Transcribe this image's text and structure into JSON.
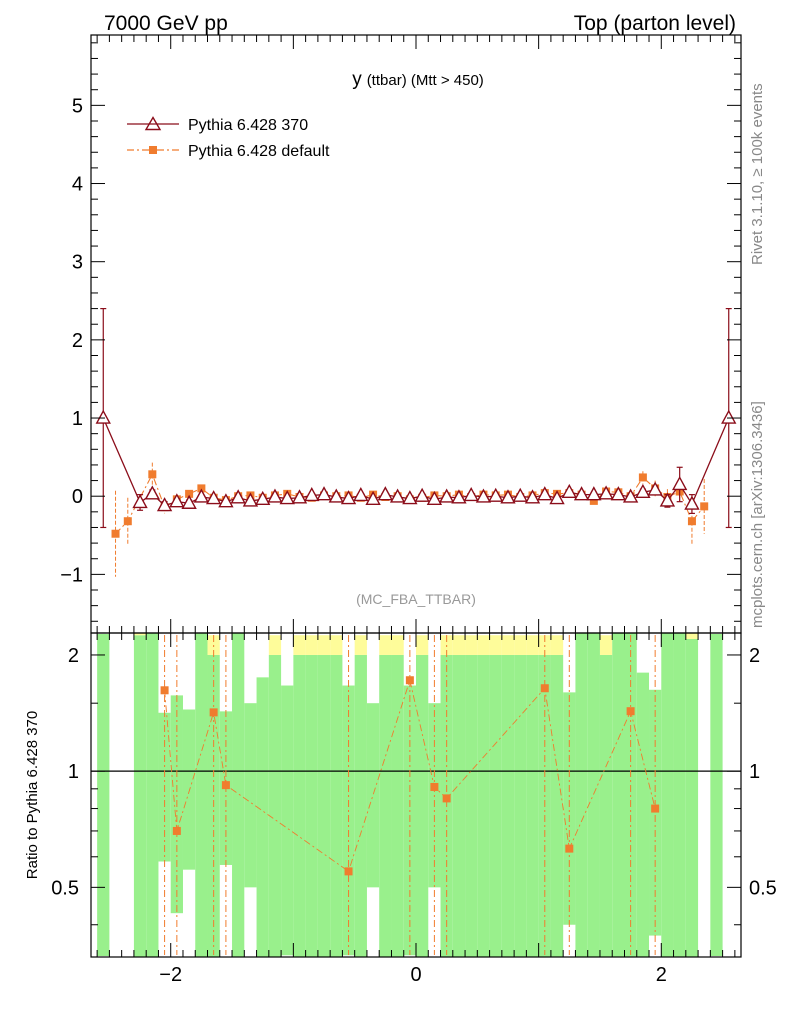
{
  "header": {
    "energy_label": "7000 GeV pp",
    "process_label": "Top (parton level)"
  },
  "side_labels": {
    "rivet": "Rivet 3.1.10, ≥ 100k events",
    "mcplots": "mcplots.cern.ch [arXiv:1306.3436]"
  },
  "plot_title": {
    "main": "y",
    "sub": "(ttbar) (Mtt > 450)"
  },
  "analysis_id": "(MC_FBA_TTBAR)",
  "ratio_ylabel": "Ratio to Pythia 6.428 370",
  "colors": {
    "ref": "#8b0d1a",
    "mc": "#f07c2e",
    "band_green": "#99f08c",
    "band_yellow": "#fefc9a",
    "line": "#000000"
  },
  "chart_data": {
    "type": "line",
    "xlim": [
      -2.65,
      2.65
    ],
    "ylim_main": [
      -1.75,
      5.9
    ],
    "ylim_ratio": [
      0.33,
      2.28
    ],
    "ratio_log_scale": true,
    "x_ticks": [
      -2,
      0,
      2
    ],
    "x_tick_labels": [
      "−2",
      "0",
      "2"
    ],
    "y_ticks_main": [
      -1,
      0,
      1,
      2,
      3,
      4,
      5
    ],
    "y_tick_labels_main": [
      "−1",
      "0",
      "1",
      "2",
      "3",
      "4",
      "5"
    ],
    "y_ticks_ratio": [
      0.5,
      1,
      2
    ],
    "y_tick_labels_ratio": [
      "0.5",
      "1",
      "2"
    ],
    "legend_position": "top-left",
    "series": [
      {
        "name": "Pythia 6.428 370",
        "marker": "open-triangle",
        "line": "solid",
        "points": [
          {
            "x": -2.55,
            "y": 1.0,
            "err": 1.4
          },
          {
            "x": -2.25,
            "y": -0.08,
            "err": 0.1
          },
          {
            "x": -2.15,
            "y": 0.03,
            "err": 0.05
          },
          {
            "x": -2.05,
            "y": -0.12,
            "err": 0.05
          },
          {
            "x": -1.95,
            "y": -0.07,
            "err": 0.04
          },
          {
            "x": -1.85,
            "y": -0.09,
            "err": 0.04
          },
          {
            "x": -1.75,
            "y": -0.01,
            "err": 0.03
          },
          {
            "x": -1.65,
            "y": -0.03,
            "err": 0.03
          },
          {
            "x": -1.55,
            "y": -0.07,
            "err": 0.03
          },
          {
            "x": -1.45,
            "y": -0.02,
            "err": 0.03
          },
          {
            "x": -1.35,
            "y": -0.06,
            "err": 0.03
          },
          {
            "x": -1.25,
            "y": -0.04,
            "err": 0.03
          },
          {
            "x": -1.15,
            "y": -0.01,
            "err": 0.02
          },
          {
            "x": -1.05,
            "y": -0.03,
            "err": 0.02
          },
          {
            "x": -0.95,
            "y": -0.02,
            "err": 0.02
          },
          {
            "x": -0.85,
            "y": 0.01,
            "err": 0.02
          },
          {
            "x": -0.75,
            "y": 0.02,
            "err": 0.02
          },
          {
            "x": -0.65,
            "y": -0.01,
            "err": 0.02
          },
          {
            "x": -0.55,
            "y": -0.03,
            "err": 0.02
          },
          {
            "x": -0.45,
            "y": 0.01,
            "err": 0.02
          },
          {
            "x": -0.35,
            "y": -0.04,
            "err": 0.02
          },
          {
            "x": -0.25,
            "y": 0.02,
            "err": 0.02
          },
          {
            "x": -0.15,
            "y": -0.01,
            "err": 0.02
          },
          {
            "x": -0.05,
            "y": -0.03,
            "err": 0.02
          },
          {
            "x": 0.05,
            "y": 0.0,
            "err": 0.02
          },
          {
            "x": 0.15,
            "y": -0.04,
            "err": 0.02
          },
          {
            "x": 0.25,
            "y": -0.01,
            "err": 0.02
          },
          {
            "x": 0.35,
            "y": -0.02,
            "err": 0.02
          },
          {
            "x": 0.45,
            "y": 0.01,
            "err": 0.02
          },
          {
            "x": 0.55,
            "y": -0.01,
            "err": 0.02
          },
          {
            "x": 0.65,
            "y": 0.0,
            "err": 0.02
          },
          {
            "x": 0.75,
            "y": -0.02,
            "err": 0.02
          },
          {
            "x": 0.85,
            "y": 0.0,
            "err": 0.02
          },
          {
            "x": 0.95,
            "y": -0.02,
            "err": 0.02
          },
          {
            "x": 1.05,
            "y": 0.02,
            "err": 0.02
          },
          {
            "x": 1.15,
            "y": -0.03,
            "err": 0.03
          },
          {
            "x": 1.25,
            "y": 0.05,
            "err": 0.03
          },
          {
            "x": 1.35,
            "y": 0.02,
            "err": 0.03
          },
          {
            "x": 1.45,
            "y": 0.02,
            "err": 0.03
          },
          {
            "x": 1.55,
            "y": 0.03,
            "err": 0.03
          },
          {
            "x": 1.65,
            "y": 0.02,
            "err": 0.03
          },
          {
            "x": 1.75,
            "y": -0.01,
            "err": 0.04
          },
          {
            "x": 1.85,
            "y": 0.05,
            "err": 0.04
          },
          {
            "x": 1.95,
            "y": 0.08,
            "err": 0.05
          },
          {
            "x": 2.05,
            "y": -0.06,
            "err": 0.08
          },
          {
            "x": 2.15,
            "y": 0.15,
            "err": 0.22
          },
          {
            "x": 2.25,
            "y": -0.1,
            "err": 0.12
          },
          {
            "x": 2.55,
            "y": 1.0,
            "err": 1.4
          }
        ]
      },
      {
        "name": "Pythia 6.428 default",
        "marker": "filled-square",
        "line": "dash-dot",
        "points": [
          {
            "x": -2.45,
            "y": -0.48,
            "err": 0.55
          },
          {
            "x": -2.35,
            "y": -0.32,
            "err": 0.3
          },
          {
            "x": -2.15,
            "y": 0.28,
            "err": 0.15
          },
          {
            "x": -2.05,
            "y": -0.14,
            "err": 0.08
          },
          {
            "x": -1.95,
            "y": -0.04,
            "err": 0.05
          },
          {
            "x": -1.85,
            "y": 0.03,
            "err": 0.04
          },
          {
            "x": -1.75,
            "y": 0.1,
            "err": 0.04
          },
          {
            "x": -1.65,
            "y": -0.02,
            "err": 0.03
          },
          {
            "x": -1.55,
            "y": -0.05,
            "err": 0.03
          },
          {
            "x": -1.45,
            "y": 0.0,
            "err": 0.03
          },
          {
            "x": -1.35,
            "y": 0.01,
            "err": 0.03
          },
          {
            "x": -1.25,
            "y": -0.02,
            "err": 0.03
          },
          {
            "x": -1.15,
            "y": 0.01,
            "err": 0.02
          },
          {
            "x": -1.05,
            "y": 0.03,
            "err": 0.02
          },
          {
            "x": -0.95,
            "y": -0.01,
            "err": 0.02
          },
          {
            "x": -0.85,
            "y": -0.02,
            "err": 0.02
          },
          {
            "x": -0.75,
            "y": 0.01,
            "err": 0.02
          },
          {
            "x": -0.65,
            "y": 0.0,
            "err": 0.02
          },
          {
            "x": -0.55,
            "y": 0.01,
            "err": 0.02
          },
          {
            "x": -0.45,
            "y": -0.02,
            "err": 0.02
          },
          {
            "x": -0.35,
            "y": 0.02,
            "err": 0.02
          },
          {
            "x": -0.25,
            "y": -0.01,
            "err": 0.02
          },
          {
            "x": -0.15,
            "y": 0.0,
            "err": 0.02
          },
          {
            "x": -0.05,
            "y": -0.04,
            "err": 0.02
          },
          {
            "x": 0.05,
            "y": -0.02,
            "err": 0.02
          },
          {
            "x": 0.15,
            "y": 0.01,
            "err": 0.02
          },
          {
            "x": 0.25,
            "y": 0.0,
            "err": 0.02
          },
          {
            "x": 0.35,
            "y": 0.02,
            "err": 0.02
          },
          {
            "x": 0.45,
            "y": -0.01,
            "err": 0.02
          },
          {
            "x": 0.55,
            "y": 0.02,
            "err": 0.02
          },
          {
            "x": 0.65,
            "y": 0.01,
            "err": 0.02
          },
          {
            "x": 0.75,
            "y": 0.02,
            "err": 0.02
          },
          {
            "x": 0.85,
            "y": -0.01,
            "err": 0.02
          },
          {
            "x": 0.95,
            "y": 0.01,
            "err": 0.02
          },
          {
            "x": 1.05,
            "y": 0.04,
            "err": 0.03
          },
          {
            "x": 1.15,
            "y": 0.03,
            "err": 0.03
          },
          {
            "x": 1.25,
            "y": 0.04,
            "err": 0.03
          },
          {
            "x": 1.35,
            "y": 0.02,
            "err": 0.03
          },
          {
            "x": 1.45,
            "y": -0.06,
            "err": 0.03
          },
          {
            "x": 1.55,
            "y": 0.06,
            "err": 0.03
          },
          {
            "x": 1.65,
            "y": 0.05,
            "err": 0.04
          },
          {
            "x": 1.75,
            "y": 0.0,
            "err": 0.04
          },
          {
            "x": 1.85,
            "y": 0.24,
            "err": 0.08
          },
          {
            "x": 1.95,
            "y": 0.1,
            "err": 0.1
          },
          {
            "x": 2.05,
            "y": -0.01,
            "err": 0.1
          },
          {
            "x": 2.15,
            "y": 0.06,
            "err": 0.12
          },
          {
            "x": 2.25,
            "y": -0.32,
            "err": 0.3
          },
          {
            "x": 2.35,
            "y": -0.13,
            "err": 0.35
          }
        ]
      }
    ],
    "ratio_points": [
      {
        "x": -2.05,
        "y": 1.62
      },
      {
        "x": -1.95,
        "y": 0.7
      },
      {
        "x": -1.65,
        "y": 1.42
      },
      {
        "x": -1.55,
        "y": 0.92
      },
      {
        "x": -0.55,
        "y": 0.55
      },
      {
        "x": -0.05,
        "y": 1.72
      },
      {
        "x": 0.15,
        "y": 0.91
      },
      {
        "x": 0.25,
        "y": 0.85
      },
      {
        "x": 1.05,
        "y": 1.64
      },
      {
        "x": 1.25,
        "y": 0.63
      },
      {
        "x": 1.75,
        "y": 1.43
      },
      {
        "x": 1.95,
        "y": 0.8
      }
    ]
  }
}
